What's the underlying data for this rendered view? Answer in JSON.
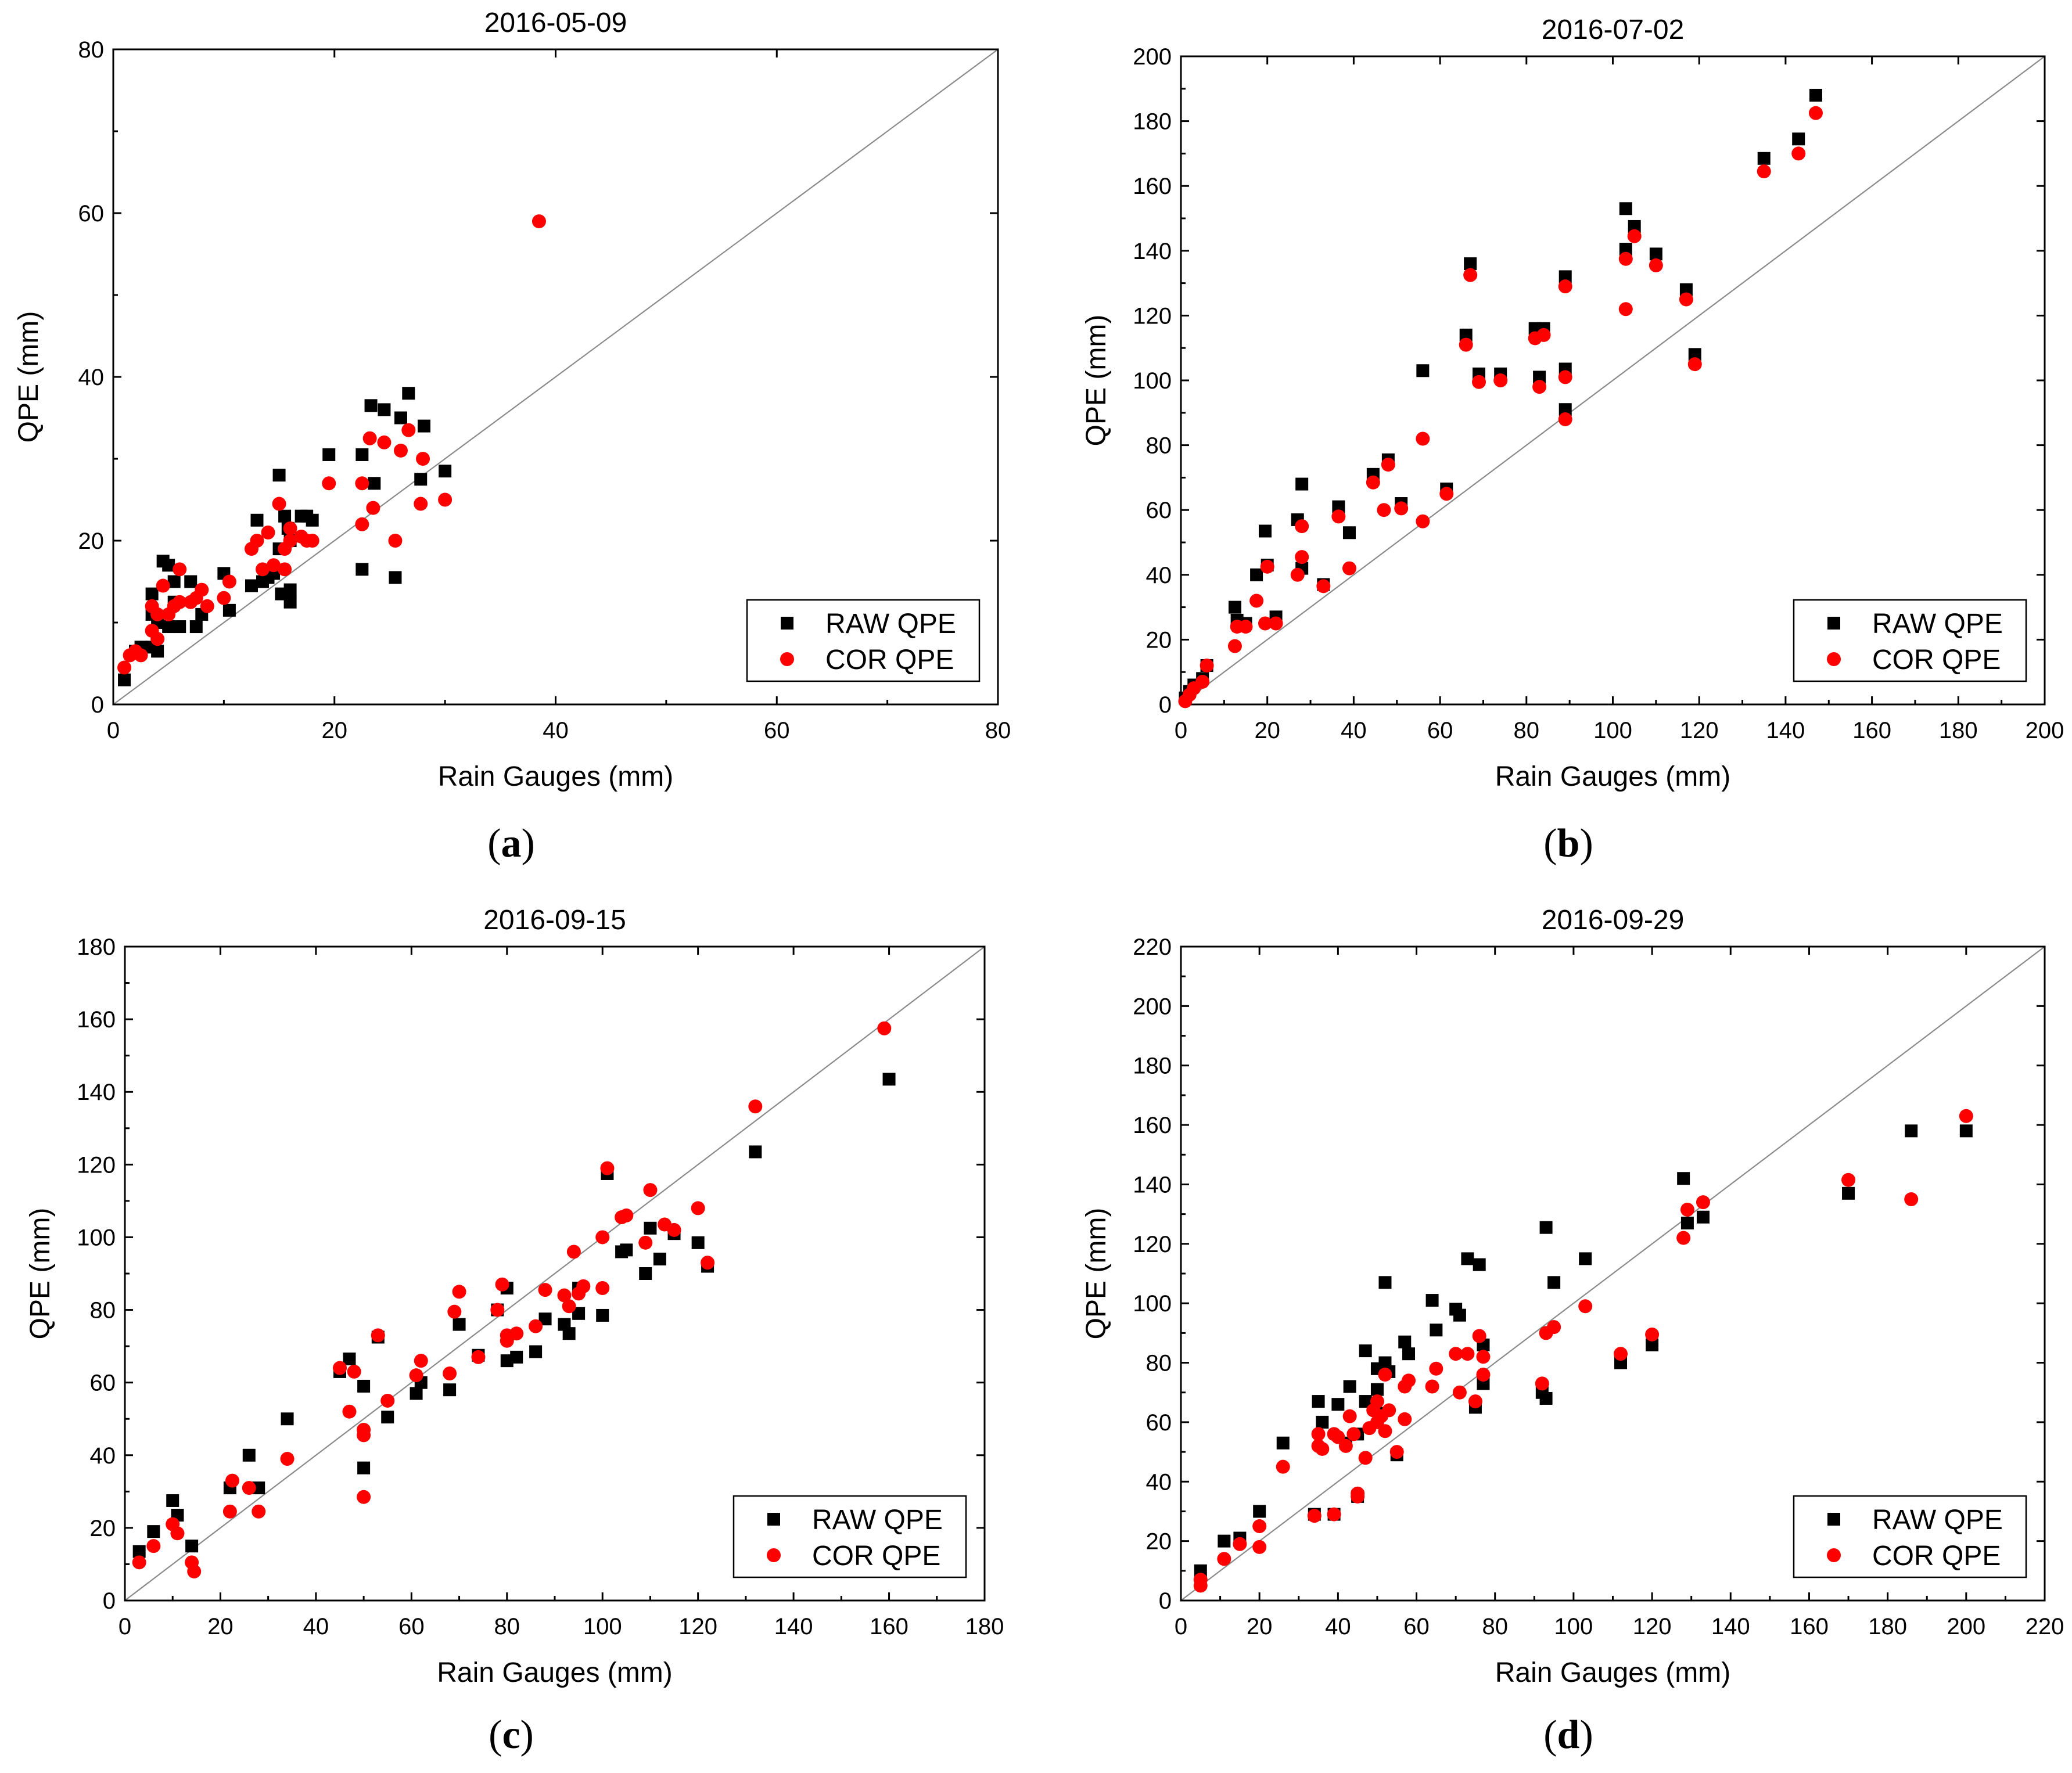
{
  "chart_data": [
    {
      "type": "scatter",
      "title": "2016-05-09",
      "panel": "a",
      "xlabel": "Rain Gauges (mm)",
      "ylabel": "QPE (mm)",
      "xlim": [
        0,
        80
      ],
      "ylim": [
        0,
        80
      ],
      "xticks": [
        0,
        20,
        40,
        60,
        80
      ],
      "yticks": [
        0,
        20,
        40,
        60,
        80
      ],
      "reference_line": "1:1",
      "legend": {
        "placement": "bottom-right"
      },
      "series": [
        {
          "name": "RAW QPE",
          "color": "#000000",
          "marker": "square",
          "x": [
            1,
            2,
            2.5,
            3.5,
            3.5,
            3.5,
            4,
            4,
            4.5,
            5,
            5,
            5.5,
            5.5,
            6,
            7,
            7.5,
            8,
            10,
            10.5,
            12.5,
            13,
            13.5,
            14,
            14.5,
            15,
            15,
            15.2,
            15.5,
            15.8,
            16,
            16,
            16,
            17,
            17.5,
            18,
            19.5,
            22.5,
            22.5,
            23.3,
            23.6,
            24.5,
            25.5,
            26,
            26.7,
            27.8,
            28.1,
            30
          ],
          "y": [
            3,
            6.5,
            7,
            13.5,
            11,
            7,
            10,
            6.5,
            17.5,
            17,
            9.5,
            15,
            12.5,
            9.5,
            15,
            9.5,
            11,
            16,
            11.5,
            14.5,
            22.5,
            15,
            15.5,
            16,
            28,
            19,
            13.5,
            23,
            21.5,
            20,
            14,
            12.5,
            23,
            23,
            22.5,
            30.5,
            30.5,
            16.5,
            36.5,
            27,
            36,
            15.5,
            35,
            38,
            27.5,
            34,
            28.5
          ]
        },
        {
          "name": "COR QPE",
          "color": "#ff0000",
          "marker": "circle",
          "x": [
            1,
            1.5,
            2,
            2.5,
            3.5,
            3.5,
            4,
            4,
            4.5,
            5,
            5.5,
            6,
            6,
            7,
            7.5,
            8,
            8.5,
            10,
            10.5,
            12.5,
            13,
            13.5,
            14,
            14.5,
            15,
            15.5,
            15.5,
            16,
            16,
            17,
            17.5,
            18,
            19.5,
            22.5,
            22.5,
            23.2,
            23.5,
            24.5,
            25.5,
            26,
            26.7,
            27.8,
            28,
            30,
            38.5
          ],
          "y": [
            4.5,
            6,
            6.5,
            6,
            9,
            12,
            8,
            11,
            14.5,
            11,
            12,
            16.5,
            12.5,
            12.5,
            13,
            14,
            12,
            13,
            15,
            19,
            20,
            16.5,
            21,
            17,
            24.5,
            19,
            16.5,
            20,
            21.5,
            20.5,
            20,
            20,
            27,
            27,
            22,
            32.5,
            24,
            32,
            20,
            31,
            33.5,
            24.5,
            30,
            25,
            59
          ]
        }
      ]
    },
    {
      "type": "scatter",
      "title": "2016-07-02",
      "panel": "b",
      "xlabel": "Rain Gauges (mm)",
      "ylabel": "QPE (mm)",
      "xlim": [
        0,
        200
      ],
      "ylim": [
        0,
        200
      ],
      "xticks": [
        0,
        20,
        40,
        60,
        80,
        100,
        120,
        140,
        160,
        180,
        200
      ],
      "yticks": [
        0,
        20,
        40,
        60,
        80,
        100,
        120,
        140,
        160,
        180,
        200
      ],
      "reference_line": "1:1",
      "legend": {
        "placement": "bottom-right"
      },
      "series": [
        {
          "name": "RAW QPE",
          "color": "#000000",
          "marker": "square",
          "x": [
            1,
            2,
            3,
            5,
            6,
            12.5,
            13,
            15,
            17.5,
            19.5,
            20,
            22,
            27,
            28,
            28,
            33,
            36.5,
            39,
            44.5,
            48,
            51,
            56,
            61.5,
            66,
            67,
            69,
            74,
            82,
            84,
            83,
            89,
            89,
            89,
            103,
            103,
            105,
            110,
            117,
            119,
            135,
            143,
            147
          ],
          "y": [
            2,
            4,
            6,
            8,
            12,
            30,
            26,
            25,
            40,
            53.5,
            43,
            27,
            57,
            68,
            42,
            37,
            61,
            53,
            71,
            75.5,
            62,
            103,
            66.5,
            114,
            136,
            102,
            102,
            116,
            116,
            101,
            132,
            103.5,
            91,
            153,
            140.5,
            147.5,
            139,
            128,
            108,
            168.5,
            174.5,
            188
          ]
        },
        {
          "name": "COR QPE",
          "color": "#ff0000",
          "marker": "circle",
          "x": [
            1,
            2,
            3,
            5,
            6,
            12.5,
            13,
            15,
            17.5,
            19.5,
            20,
            22,
            27,
            28,
            28,
            33,
            36.5,
            39,
            44.5,
            47,
            48,
            51,
            56,
            56,
            61.5,
            66,
            67,
            69,
            74,
            82,
            84,
            83,
            89,
            89,
            89,
            103,
            103,
            105,
            110,
            117,
            119,
            135,
            143,
            147
          ],
          "y": [
            1,
            3,
            5,
            7,
            12,
            18,
            24,
            24,
            32,
            25,
            42.5,
            25,
            40,
            45.5,
            55,
            36.5,
            58,
            42,
            68.5,
            60,
            74,
            60.5,
            82,
            56.5,
            65,
            111,
            132.5,
            99.5,
            100,
            113,
            114,
            98,
            129,
            101,
            88,
            137.5,
            122,
            144.5,
            135.5,
            125,
            105,
            164.5,
            170,
            182.5
          ]
        }
      ]
    },
    {
      "type": "scatter",
      "title": "2016-09-15",
      "panel": "c",
      "xlabel": "Rain Gauges (mm)",
      "ylabel": "QPE (mm)",
      "xlim": [
        0,
        180
      ],
      "ylim": [
        0,
        180
      ],
      "xticks": [
        0,
        20,
        40,
        60,
        80,
        100,
        120,
        140,
        160,
        180
      ],
      "yticks": [
        0,
        20,
        40,
        60,
        80,
        100,
        120,
        140,
        160,
        180
      ],
      "reference_line": "1:1",
      "legend": {
        "placement": "bottom-right"
      },
      "series": [
        {
          "name": "RAW QPE",
          "color": "#000000",
          "marker": "square",
          "x": [
            3,
            6,
            10,
            11,
            14,
            22,
            26,
            28,
            34,
            45,
            47,
            50,
            50,
            53,
            55,
            61,
            62,
            68,
            70,
            74,
            78,
            80,
            80,
            82,
            86,
            88,
            92,
            93,
            95,
            95,
            100,
            101,
            104,
            105,
            109,
            110,
            112,
            115,
            120,
            122,
            132,
            160
          ],
          "y": [
            13.5,
            19,
            27.5,
            23.5,
            15,
            31,
            40,
            31,
            50,
            63,
            66.5,
            59,
            36.5,
            72.5,
            50.5,
            57,
            60,
            58,
            76,
            67.5,
            80,
            86,
            66,
            67,
            68.5,
            77.5,
            76,
            73.5,
            86,
            79,
            78.5,
            117.5,
            96,
            96.5,
            90,
            102.5,
            94,
            101,
            98.5,
            92,
            123.5,
            143.5
          ]
        },
        {
          "name": "COR QPE",
          "color": "#ff0000",
          "marker": "circle",
          "x": [
            3,
            6,
            10,
            11,
            14,
            14.5,
            22,
            22.5,
            26,
            28,
            34,
            45,
            47,
            48,
            50,
            50,
            50,
            53,
            55,
            61,
            62,
            68,
            69,
            70,
            74,
            78,
            79,
            80,
            80,
            82,
            86,
            88,
            92,
            93,
            94,
            95,
            96,
            100,
            100,
            101,
            104,
            105,
            109,
            110,
            113,
            115,
            120,
            122,
            132,
            159
          ],
          "y": [
            10.5,
            15,
            21,
            18.5,
            10.5,
            8,
            24.5,
            33,
            31,
            24.5,
            39,
            64,
            52,
            63,
            47,
            45.5,
            28.5,
            73,
            55,
            62,
            66,
            62.5,
            79.5,
            85,
            67,
            80,
            87,
            73,
            71.5,
            73.5,
            75.5,
            85.5,
            84,
            81,
            96,
            84.5,
            86.5,
            100,
            86,
            119,
            105.5,
            106,
            98.5,
            113,
            103.5,
            102,
            108,
            93,
            136,
            157.5
          ]
        }
      ]
    },
    {
      "type": "scatter",
      "title": "2016-09-29",
      "panel": "d",
      "xlabel": "Rain Gauges (mm)",
      "ylabel": "QPE (mm)",
      "xlim": [
        0,
        220
      ],
      "ylim": [
        0,
        220
      ],
      "xticks": [
        0,
        20,
        40,
        60,
        80,
        100,
        120,
        140,
        160,
        180,
        200,
        220
      ],
      "yticks": [
        0,
        20,
        40,
        60,
        80,
        100,
        120,
        140,
        160,
        180,
        200,
        220
      ],
      "reference_line": "1:1",
      "legend": {
        "placement": "bottom-right"
      },
      "series": [
        {
          "name": "RAW QPE",
          "color": "#000000",
          "marker": "square",
          "x": [
            5,
            11,
            15,
            20,
            26,
            34,
            35,
            36,
            39,
            40,
            42,
            43,
            45,
            45,
            47,
            47,
            50,
            50,
            51,
            52,
            52,
            53,
            55,
            57,
            58,
            64,
            65,
            70,
            71,
            73,
            76,
            77,
            75,
            77,
            92,
            93,
            93,
            95,
            103,
            112,
            120,
            128,
            129,
            133,
            170,
            186,
            200
          ],
          "y": [
            10,
            20,
            21,
            30,
            53,
            29,
            67,
            60,
            29,
            66,
            53,
            72,
            56,
            35,
            84,
            67,
            78,
            71,
            63,
            80,
            107,
            77,
            49,
            87,
            83,
            101,
            91,
            98,
            96,
            115,
            113,
            86,
            65,
            73,
            70,
            125.5,
            68,
            107,
            115,
            80,
            86,
            142,
            127,
            129,
            137,
            158,
            158
          ]
        },
        {
          "name": "COR QPE",
          "color": "#ff0000",
          "marker": "circle",
          "x": [
            5,
            5,
            11,
            15,
            20,
            20,
            26,
            34,
            35,
            35,
            36,
            39,
            39,
            40,
            42,
            43,
            44,
            45,
            45,
            47,
            48,
            49,
            50,
            50,
            51,
            52,
            52,
            53,
            55,
            57,
            57,
            58,
            64,
            65,
            70,
            71,
            73,
            75,
            76,
            77,
            77,
            92,
            93,
            95,
            103,
            112,
            120,
            128,
            129,
            133,
            170,
            186,
            200
          ],
          "y": [
            7,
            5,
            14,
            19,
            18,
            25,
            45,
            28.5,
            52,
            56,
            51,
            29,
            56,
            55,
            52,
            62,
            56,
            36,
            35,
            48,
            58,
            64,
            60,
            67,
            62,
            57,
            76,
            64,
            50,
            61,
            72,
            74,
            72,
            78,
            83,
            70,
            83,
            67,
            89,
            82,
            76,
            73,
            90,
            92,
            99,
            83,
            89.5,
            122,
            131.5,
            134,
            141.5,
            135,
            163
          ]
        }
      ]
    }
  ]
}
